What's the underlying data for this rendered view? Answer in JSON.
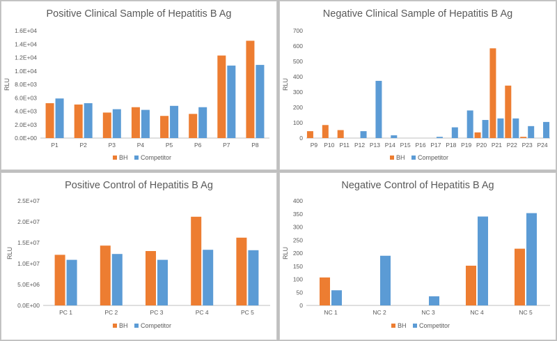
{
  "colors": {
    "bh": "#ED7D31",
    "competitor": "#5B9BD5",
    "axis": "#bfbfbf",
    "text": "#595959"
  },
  "chart_data": [
    {
      "type": "bar",
      "title": "Positive Clinical Sample of  Hepatitis B Ag",
      "ylabel": "RLU",
      "xlabel": "",
      "ylim": [
        0,
        16000
      ],
      "ytick_step": 2000,
      "ytick_labels": [
        "0.0E+00",
        "2.0E+03",
        "4.0E+03",
        "6.0E+03",
        "8.0E+03",
        "1.0E+04",
        "1.2E+04",
        "1.4E+04",
        "1.6E+04"
      ],
      "categories": [
        "P1",
        "P2",
        "P3",
        "P4",
        "P5",
        "P6",
        "P7",
        "P8"
      ],
      "series": [
        {
          "name": "BH",
          "values": [
            5200,
            5000,
            3800,
            4600,
            3300,
            3600,
            12300,
            14500
          ]
        },
        {
          "name": "Competitor",
          "values": [
            5900,
            5200,
            4300,
            4200,
            4800,
            4600,
            10800,
            10900
          ]
        }
      ],
      "legend": "bottom",
      "grid": false
    },
    {
      "type": "bar",
      "title": "Negative Clinical Sample of  Hepatitis B Ag",
      "ylabel": "RLU",
      "xlabel": "",
      "ylim": [
        0,
        700
      ],
      "ytick_step": 100,
      "ytick_labels": [
        "0",
        "100",
        "200",
        "300",
        "400",
        "500",
        "600",
        "700"
      ],
      "categories": [
        "P9",
        "P10",
        "P11",
        "P12",
        "P13",
        "P14",
        "P15",
        "P16",
        "P17",
        "P18",
        "P19",
        "P20",
        "P21",
        "P22",
        "P23",
        "P24"
      ],
      "series": [
        {
          "name": "BH",
          "values": [
            45,
            85,
            52,
            0,
            0,
            0,
            0,
            0,
            0,
            0,
            0,
            37,
            585,
            342,
            8,
            0
          ]
        },
        {
          "name": "Competitor",
          "values": [
            0,
            0,
            0,
            45,
            373,
            18,
            0,
            0,
            8,
            70,
            180,
            118,
            128,
            128,
            78,
            105
          ]
        }
      ],
      "legend": "bottom",
      "grid": false
    },
    {
      "type": "bar",
      "title": "Positive Control of Hepatitis B Ag",
      "ylabel": "RLU",
      "xlabel": "",
      "ylim": [
        0,
        25000000
      ],
      "ytick_step": 5000000,
      "ytick_labels": [
        "0.0E+00",
        "5.0E+06",
        "1.0E+07",
        "1.5E+07",
        "2.0E+07",
        "2.5E+07"
      ],
      "categories": [
        "PC 1",
        "PC 2",
        "PC 3",
        "PC 4",
        "PC 5"
      ],
      "series": [
        {
          "name": "BH",
          "values": [
            12100000,
            14300000,
            13000000,
            21200000,
            16200000
          ]
        },
        {
          "name": "Competitor",
          "values": [
            10900000,
            12300000,
            10900000,
            13300000,
            13200000
          ]
        }
      ],
      "legend": "bottom",
      "grid": false
    },
    {
      "type": "bar",
      "title": "Negative Control of Hepatitis B Ag",
      "ylabel": "RLU",
      "xlabel": "",
      "ylim": [
        0,
        400
      ],
      "ytick_step": 50,
      "ytick_labels": [
        "0",
        "50",
        "100",
        "150",
        "200",
        "250",
        "300",
        "350",
        "400"
      ],
      "categories": [
        "NC 1",
        "NC 2",
        "NC 3",
        "NC 4",
        "NC 5"
      ],
      "series": [
        {
          "name": "BH",
          "values": [
            107,
            0,
            0,
            152,
            217
          ]
        },
        {
          "name": "Competitor",
          "values": [
            58,
            190,
            35,
            340,
            353
          ]
        }
      ],
      "legend": "bottom",
      "grid": false
    }
  ]
}
